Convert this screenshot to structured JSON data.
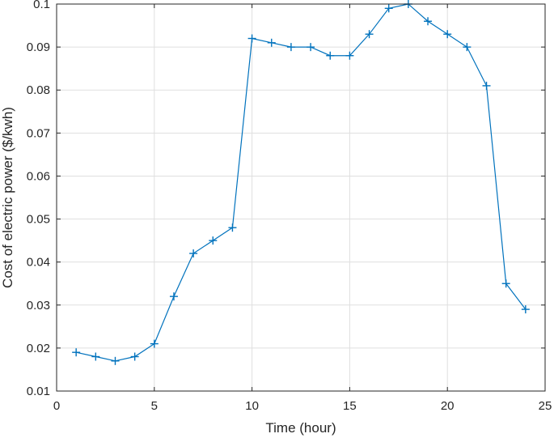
{
  "chart_data": {
    "type": "line",
    "title": "",
    "xlabel": "Time (hour)",
    "ylabel": "Cost of electric power ($/kwh)",
    "xlim": [
      0,
      25
    ],
    "ylim": [
      0.01,
      0.1
    ],
    "xticks": [
      0,
      5,
      10,
      15,
      20,
      25
    ],
    "xtick_labels": [
      "0",
      "5",
      "10",
      "15",
      "20",
      "25"
    ],
    "yticks": [
      0.01,
      0.02,
      0.03,
      0.04,
      0.05,
      0.06,
      0.07,
      0.08,
      0.09,
      0.1
    ],
    "ytick_labels": [
      "0.01",
      "0.02",
      "0.03",
      "0.04",
      "0.05",
      "0.06",
      "0.07",
      "0.08",
      "0.09",
      "0.1"
    ],
    "grid": true,
    "marker": "+",
    "colors": {
      "series": "#0072BD",
      "grid": "#DFDFDF",
      "axis": "#262626"
    },
    "series": [
      {
        "x": [
          1,
          2,
          3,
          4,
          5,
          6,
          7,
          8,
          9,
          10,
          11,
          12,
          13,
          14,
          15,
          16,
          17,
          18,
          19,
          20,
          21,
          22,
          23,
          24
        ],
        "values": [
          0.019,
          0.018,
          0.017,
          0.018,
          0.021,
          0.032,
          0.042,
          0.045,
          0.048,
          0.092,
          0.091,
          0.09,
          0.09,
          0.088,
          0.088,
          0.093,
          0.099,
          0.1,
          0.096,
          0.093,
          0.09,
          0.081,
          0.035,
          0.029
        ]
      }
    ]
  }
}
